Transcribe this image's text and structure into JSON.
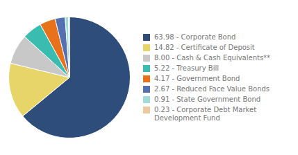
{
  "chart_data": {
    "type": "pie",
    "categories": [
      "63.98 - Corporate Bond",
      "14.82 - Certificate of Deposit",
      "8.00 - Cash & Cash Equivalents**",
      "5.22 - Treasury Bill",
      "4.17 - Government Bond",
      "2.67 - Reduced Face Value Bonds",
      "0.91 - State Government Bond",
      "0.23 - Corporate Debt Market\nDevelopment Fund"
    ],
    "values": [
      63.98,
      14.82,
      8.0,
      5.22,
      4.17,
      2.67,
      0.91,
      0.23
    ],
    "colors": [
      "#2e4d7b",
      "#e8d56a",
      "#c8c8c8",
      "#3abcb0",
      "#e8721c",
      "#5570b0",
      "#a0dcd8",
      "#f0c8a0"
    ],
    "legend": "right"
  }
}
